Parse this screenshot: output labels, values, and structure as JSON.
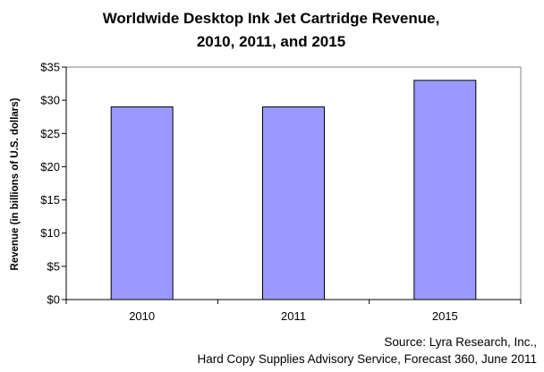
{
  "chart_data": {
    "type": "bar",
    "title_lines": [
      "Worldwide Desktop Ink Jet Cartridge Revenue,",
      "2010, 2011, and 2015"
    ],
    "xlabel": "",
    "ylabel": "Revenue (in billions of U.S. dollars)",
    "categories": [
      "2010",
      "2011",
      "2015"
    ],
    "values": [
      29,
      29,
      33
    ],
    "ylim": [
      0,
      35
    ],
    "y_ticks": [
      0,
      5,
      10,
      15,
      20,
      25,
      30,
      35
    ],
    "y_tick_labels": [
      "$0",
      "$5",
      "$10",
      "$15",
      "$20",
      "$25",
      "$30",
      "$35"
    ],
    "grid": false,
    "legend": "none",
    "bar_color": "#9999ff",
    "bar_edge_color": "#000000",
    "source_lines": [
      "Source: Lyra Research, Inc.,",
      "Hard Copy Supplies Advisory Service, Forecast 360, June 2011"
    ]
  }
}
